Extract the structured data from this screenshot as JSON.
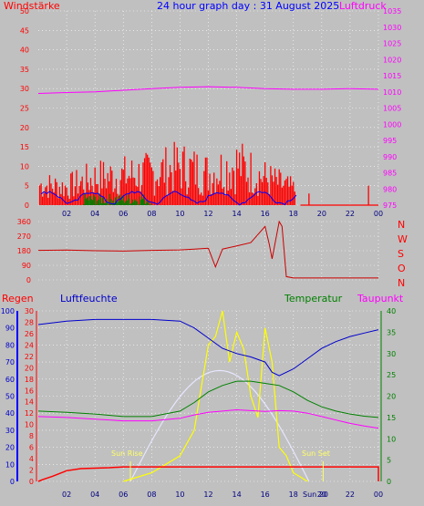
{
  "colors": {
    "bg": "#c0c0c0",
    "plot": "#c0c0c0",
    "grid": "#ffffff",
    "wind": "#ff0000",
    "wind_gust_green": "#008000",
    "wind_blue": "#0000ff",
    "pressure": "#ff00ff",
    "direction": "#cc0000",
    "humidity": "#0000cc",
    "temperature": "#008000",
    "dewpoint": "#ff00ff",
    "rain": "#ff0000",
    "solar": "#ffff00",
    "solar_theory": "#e8e8ff"
  },
  "header": {
    "title": "24 hour graph day : 31 August 2025",
    "left_label": "Windstärke",
    "right_label": "Luftdruck"
  },
  "direction_labels": [
    "N",
    "W",
    "S",
    "O",
    "N"
  ],
  "bottom_labels": {
    "rain": "Regen",
    "humidity": "Luftfeuchte",
    "temperature": "Temperatur",
    "dewpoint": "Taupunkt",
    "sun_rise": "Sun Rise",
    "sun_set": "Sun Set",
    "sun_now": "Sun 20"
  },
  "chart_data": [
    {
      "type": "bar",
      "title": "24 hour graph day : 31 August 2025",
      "x_ticks": [
        "02",
        "04",
        "06",
        "08",
        "10",
        "12",
        "14",
        "16",
        "18",
        "20",
        "22",
        "00"
      ],
      "y_left": {
        "label": "Windstärke",
        "ylim": [
          0,
          50
        ],
        "ticks": [
          0,
          5,
          10,
          15,
          20,
          25,
          30,
          35,
          40,
          45,
          50
        ]
      },
      "y_right": {
        "label": "Luftdruck",
        "ylim": [
          975,
          1035
        ],
        "ticks": [
          975,
          980,
          985,
          990,
          995,
          1000,
          1005,
          1010,
          1015,
          1020,
          1025,
          1030,
          1035
        ]
      },
      "series": [
        {
          "name": "Luftdruck",
          "hours": [
            0,
            2,
            4,
            6,
            8,
            10,
            12,
            14,
            16,
            18,
            20,
            22,
            24
          ],
          "values": [
            1009.5,
            1009.8,
            1010.0,
            1010.5,
            1011.0,
            1011.4,
            1011.6,
            1011.4,
            1011.0,
            1010.8,
            1010.8,
            1011.0,
            1010.8
          ]
        },
        {
          "name": "Wind gust max",
          "hours": [
            0,
            2,
            4,
            6,
            8,
            10,
            12,
            14,
            16,
            18,
            20,
            22,
            24
          ],
          "values": [
            9,
            8,
            12,
            13,
            14,
            17,
            14,
            18,
            12,
            7,
            0,
            0,
            5
          ]
        }
      ]
    },
    {
      "type": "line",
      "y_ticks": [
        0,
        90,
        180,
        270,
        360
      ],
      "ylim": [
        0,
        360
      ],
      "series": [
        {
          "name": "Windrichtung",
          "hours": [
            0,
            2,
            4,
            6,
            8,
            10,
            11,
            12,
            12.5,
            13,
            14,
            15,
            15.5,
            16,
            16.3,
            16.5,
            17,
            17.2,
            17.5,
            18,
            20,
            22,
            24
          ],
          "values": [
            182,
            184,
            180,
            178,
            182,
            185,
            190,
            195,
            80,
            190,
            210,
            230,
            280,
            330,
            220,
            130,
            360,
            330,
            20,
            12,
            12,
            12,
            12
          ]
        }
      ]
    },
    {
      "type": "line",
      "x_ticks": [
        "02",
        "04",
        "06",
        "08",
        "10",
        "12",
        "14",
        "16",
        "18",
        "20",
        "22",
        "00"
      ],
      "y_rain_ticks": [
        0,
        2,
        4,
        6,
        8,
        10,
        12,
        14,
        16,
        18,
        20,
        22,
        24,
        26,
        28,
        30
      ],
      "y_humidity_ticks": [
        0,
        10,
        20,
        30,
        40,
        50,
        60,
        70,
        80,
        90,
        100
      ],
      "y_temp_ticks": [
        0,
        5,
        10,
        15,
        20,
        25,
        30,
        35,
        40
      ],
      "series": [
        {
          "name": "Luftfeuchte",
          "hours": [
            0,
            2,
            4,
            6,
            8,
            10,
            11,
            12,
            13,
            14,
            15,
            16,
            16.5,
            17,
            18,
            19,
            20,
            21,
            22,
            23,
            24
          ],
          "values": [
            92,
            94,
            95,
            95,
            95,
            94,
            90,
            84,
            78,
            75,
            73,
            70,
            64,
            62,
            66,
            72,
            78,
            82,
            85,
            87,
            89
          ]
        },
        {
          "name": "Temperatur",
          "hours": [
            0,
            2,
            4,
            6,
            8,
            10,
            11,
            12,
            13,
            14,
            15,
            16,
            17,
            18,
            19,
            20,
            21,
            22,
            23,
            24
          ],
          "values": [
            16.5,
            16.2,
            15.8,
            15.2,
            15.2,
            16.5,
            18.5,
            21,
            22.5,
            23.5,
            23.5,
            23.0,
            22.5,
            21,
            19,
            17.5,
            16.5,
            15.8,
            15.3,
            15
          ]
        },
        {
          "name": "Taupunkt",
          "hours": [
            0,
            2,
            4,
            6,
            8,
            10,
            11,
            12,
            13,
            14,
            15,
            16,
            17,
            18,
            19,
            20,
            21,
            22,
            23,
            24
          ],
          "values": [
            15.2,
            15.0,
            14.6,
            14.2,
            14.2,
            14.8,
            15.6,
            16.2,
            16.5,
            16.8,
            16.6,
            16.4,
            16.6,
            16.5,
            16.0,
            15.2,
            14.4,
            13.6,
            13.0,
            12.5
          ]
        },
        {
          "name": "Regen",
          "hours": [
            0,
            0.3,
            1,
            2,
            3,
            5,
            6,
            8,
            24
          ],
          "values": [
            0,
            0.4,
            1.2,
            2.5,
            3.0,
            3.2,
            3.4,
            3.4,
            3.4
          ]
        },
        {
          "name": "Solar",
          "hours": [
            6,
            8,
            9,
            10,
            11,
            11.5,
            12,
            12.5,
            13,
            13.5,
            14,
            14.5,
            15,
            15.5,
            16,
            16.5,
            17,
            17.5,
            18,
            18.5,
            19
          ],
          "values": [
            0,
            2,
            4,
            6,
            12,
            22,
            32,
            34,
            40,
            28,
            35,
            31,
            20,
            15,
            36,
            28,
            8,
            6,
            2,
            1,
            0
          ]
        }
      ],
      "sun_rise": "Sun Rise",
      "sun_set": "Sun Set"
    }
  ]
}
